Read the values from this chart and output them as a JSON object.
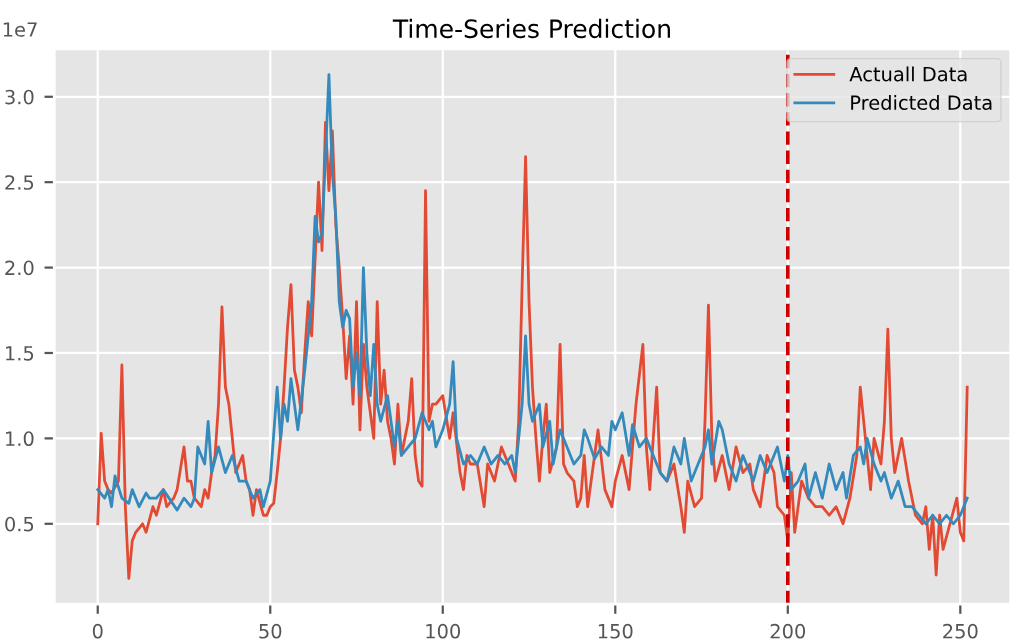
{
  "chart_data": {
    "type": "line",
    "title": "Time-Series Prediction",
    "ylabel": "1e7",
    "xlim": [
      -12.6,
      264.6
    ],
    "xticks": [
      0,
      50,
      100,
      150,
      200,
      250
    ],
    "ylim": [
      0.03,
      3.28
    ],
    "yticks": [
      {
        "value": 0.5,
        "label": "0.5"
      },
      {
        "value": 1.0,
        "label": "1.0"
      },
      {
        "value": 1.5,
        "label": "1.5"
      },
      {
        "value": 2.0,
        "label": "2.0"
      },
      {
        "value": 2.5,
        "label": "2.5"
      },
      {
        "value": 3.0,
        "label": "3.0"
      }
    ],
    "grid": true,
    "legend": "top right",
    "line_style": "solid",
    "marker": "none",
    "ref_lines": [
      {
        "axis": "x",
        "value": 200,
        "color": "#cc0000",
        "line_style": "dashed"
      }
    ],
    "series": [
      {
        "name": "Actuall Data",
        "color": "#e24a33",
        "x": [
          0,
          1,
          2,
          3,
          4,
          6,
          7,
          8,
          9,
          10,
          11,
          13,
          14,
          16,
          17,
          19,
          20,
          22,
          23,
          25,
          26,
          27,
          28,
          30,
          31,
          32,
          33,
          34,
          35,
          36,
          37,
          38,
          39,
          40,
          42,
          43,
          44,
          45,
          46,
          48,
          49,
          50,
          51,
          52,
          53,
          54,
          55,
          56,
          57,
          58,
          59,
          60,
          61,
          62,
          63,
          64,
          65,
          66,
          67,
          68,
          69,
          70,
          71,
          72,
          73,
          74,
          75,
          76,
          77,
          78,
          80,
          81,
          82,
          83,
          84,
          85,
          86,
          87,
          88,
          89,
          90,
          91,
          92,
          93,
          94,
          95,
          96,
          97,
          98,
          100,
          102,
          103,
          105,
          106,
          107,
          108,
          110,
          112,
          113,
          115,
          117,
          119,
          121,
          122,
          123,
          124,
          125,
          126,
          127,
          128,
          129,
          130,
          131,
          133,
          134,
          135,
          136,
          138,
          139,
          140,
          141,
          142,
          143,
          145,
          147,
          149,
          150,
          152,
          154,
          156,
          158,
          159,
          160,
          162,
          163,
          165,
          167,
          169,
          170,
          171,
          173,
          175,
          176,
          177,
          178,
          179,
          181,
          183,
          185,
          187,
          189,
          190,
          192,
          194,
          196,
          197,
          199,
          200,
          201,
          202,
          204,
          206,
          208,
          210,
          212,
          214,
          216,
          218,
          220,
          221,
          222,
          224,
          225,
          227,
          228,
          229,
          230,
          231,
          233,
          235,
          237,
          239,
          240,
          241,
          242,
          243,
          244,
          245,
          247,
          249,
          250,
          251,
          252
        ],
        "values": [
          0.5,
          1.03,
          0.75,
          0.7,
          0.68,
          0.75,
          1.43,
          0.6,
          0.18,
          0.4,
          0.45,
          0.5,
          0.45,
          0.6,
          0.55,
          0.7,
          0.6,
          0.65,
          0.7,
          0.95,
          0.75,
          0.75,
          0.65,
          0.6,
          0.7,
          0.65,
          0.8,
          0.9,
          1.2,
          1.77,
          1.3,
          1.2,
          1.0,
          0.8,
          0.9,
          0.75,
          0.7,
          0.55,
          0.7,
          0.55,
          0.55,
          0.6,
          0.62,
          0.8,
          1.0,
          1.3,
          1.65,
          1.9,
          1.4,
          1.3,
          1.15,
          1.5,
          1.8,
          1.6,
          2.05,
          2.5,
          2.1,
          2.85,
          2.45,
          2.8,
          2.25,
          2.0,
          1.7,
          1.35,
          1.6,
          1.2,
          1.8,
          1.05,
          1.55,
          1.3,
          1.0,
          1.8,
          1.2,
          1.4,
          1.1,
          1.0,
          0.85,
          1.2,
          0.9,
          1.0,
          1.1,
          1.35,
          0.9,
          0.75,
          0.72,
          2.45,
          1.1,
          1.2,
          1.2,
          1.25,
          1.0,
          1.15,
          0.8,
          0.7,
          0.9,
          0.85,
          0.85,
          0.6,
          0.85,
          0.75,
          0.95,
          0.85,
          0.75,
          1.1,
          1.9,
          2.65,
          1.8,
          1.3,
          1.0,
          0.75,
          1.0,
          1.2,
          0.8,
          0.95,
          1.55,
          0.85,
          0.8,
          0.75,
          0.6,
          0.65,
          0.9,
          0.6,
          0.75,
          1.05,
          0.7,
          0.6,
          0.75,
          0.9,
          0.7,
          1.2,
          1.55,
          0.95,
          0.7,
          1.3,
          0.8,
          0.75,
          0.85,
          0.6,
          0.45,
          0.75,
          0.6,
          0.65,
          1.1,
          1.78,
          1.0,
          0.75,
          0.9,
          0.7,
          0.95,
          0.8,
          0.85,
          0.7,
          0.6,
          0.9,
          0.8,
          0.6,
          0.55,
          0.4,
          0.8,
          0.45,
          0.75,
          0.65,
          0.6,
          0.6,
          0.55,
          0.6,
          0.5,
          0.65,
          0.9,
          1.3,
          1.1,
          0.7,
          1.0,
          0.85,
          1.1,
          1.64,
          1.0,
          0.8,
          1.0,
          0.75,
          0.55,
          0.5,
          0.6,
          0.35,
          0.55,
          0.2,
          0.55,
          0.35,
          0.5,
          0.65,
          0.45,
          0.4,
          1.3
        ]
      },
      {
        "name": "Predicted Data",
        "color": "#348abd",
        "x": [
          0,
          2,
          3,
          4,
          5,
          7,
          9,
          10,
          12,
          14,
          15,
          17,
          19,
          21,
          23,
          25,
          27,
          28,
          29,
          31,
          32,
          33,
          35,
          37,
          39,
          41,
          43,
          45,
          47,
          48,
          50,
          52,
          53,
          54,
          55,
          56,
          58,
          60,
          61,
          62,
          63,
          64,
          65,
          66,
          67,
          68,
          69,
          70,
          71,
          72,
          73,
          74,
          75,
          76,
          77,
          78,
          79,
          80,
          81,
          82,
          84,
          86,
          87,
          88,
          90,
          92,
          94,
          96,
          97,
          98,
          100,
          102,
          103,
          104,
          106,
          108,
          110,
          112,
          114,
          116,
          118,
          120,
          121,
          123,
          124,
          125,
          126,
          128,
          129,
          131,
          132,
          134,
          136,
          138,
          140,
          141,
          142,
          144,
          146,
          148,
          149,
          150,
          151,
          152,
          154,
          155,
          157,
          159,
          161,
          163,
          165,
          167,
          169,
          170,
          172,
          174,
          176,
          177,
          178,
          180,
          181,
          183,
          185,
          187,
          189,
          190,
          192,
          194,
          196,
          197,
          199,
          200,
          201,
          203,
          205,
          206,
          208,
          210,
          212,
          214,
          216,
          217,
          219,
          221,
          222,
          223,
          225,
          227,
          228,
          230,
          232,
          234,
          236,
          238,
          240,
          242,
          244,
          246,
          248,
          250,
          252
        ],
        "values": [
          0.7,
          0.65,
          0.7,
          0.6,
          0.78,
          0.65,
          0.62,
          0.7,
          0.6,
          0.68,
          0.65,
          0.65,
          0.7,
          0.64,
          0.58,
          0.65,
          0.6,
          0.65,
          0.95,
          0.85,
          1.1,
          0.8,
          0.95,
          0.8,
          0.9,
          0.75,
          0.75,
          0.65,
          0.7,
          0.6,
          0.75,
          1.3,
          1.0,
          1.2,
          1.1,
          1.35,
          1.05,
          1.4,
          1.6,
          1.8,
          2.3,
          2.15,
          2.2,
          2.65,
          3.13,
          2.55,
          2.3,
          1.8,
          1.65,
          1.75,
          1.7,
          1.3,
          1.5,
          1.25,
          2.0,
          1.5,
          1.25,
          1.55,
          1.2,
          1.1,
          1.25,
          0.95,
          1.1,
          0.9,
          0.95,
          1.0,
          1.15,
          1.05,
          1.1,
          0.95,
          1.05,
          1.2,
          1.45,
          1.0,
          0.85,
          0.9,
          0.85,
          0.95,
          0.85,
          0.9,
          0.85,
          0.9,
          0.8,
          1.2,
          1.6,
          1.2,
          1.1,
          1.2,
          0.95,
          1.1,
          0.85,
          1.05,
          0.95,
          0.85,
          0.9,
          1.05,
          1.0,
          0.88,
          0.95,
          0.9,
          1.1,
          1.05,
          1.1,
          1.15,
          0.9,
          1.08,
          0.95,
          1.0,
          0.9,
          0.8,
          0.75,
          0.95,
          0.85,
          1.0,
          0.75,
          0.85,
          0.95,
          1.05,
          0.85,
          1.1,
          1.05,
          0.85,
          0.75,
          0.9,
          0.8,
          0.75,
          0.9,
          0.8,
          0.9,
          0.95,
          0.75,
          0.9,
          0.7,
          0.75,
          0.85,
          0.65,
          0.8,
          0.65,
          0.85,
          0.7,
          0.8,
          0.65,
          0.9,
          0.95,
          0.85,
          1.0,
          0.85,
          0.75,
          0.8,
          0.65,
          0.75,
          0.6,
          0.6,
          0.55,
          0.5,
          0.55,
          0.5,
          0.55,
          0.5,
          0.55,
          0.65
        ]
      }
    ]
  }
}
